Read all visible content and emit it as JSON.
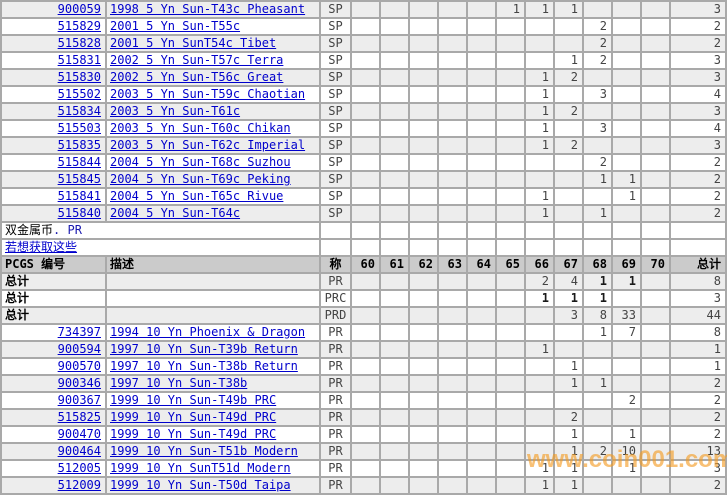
{
  "watermark": "www.coin001.com",
  "colors": {
    "link_blue": "#0000cc",
    "grid_gray": "#a9a9a9",
    "row_gray": "#ededed",
    "header_gray": "#cbcbcb",
    "watermark_orange": "#f49b21"
  },
  "table": {
    "headers": {
      "pcgs": "PCGS 编号",
      "desc": "描述",
      "type": "称",
      "grades": [
        "60",
        "61",
        "62",
        "63",
        "64",
        "65",
        "66",
        "67",
        "68",
        "69",
        "70"
      ],
      "total": "总计"
    },
    "section_break": {
      "title_black": "双金属币",
      "title_blue": ". PR",
      "link": "若想获取这些"
    },
    "totals_label": "总计",
    "top_rows": [
      {
        "pcgs": "900059",
        "desc": "1998 5 Yn Sun-T43c Pheasant",
        "type": "SP",
        "grades": {
          "65": "1",
          "66": "1",
          "67": "1"
        },
        "total": "3"
      },
      {
        "pcgs": "515829",
        "desc": "2001 5 Yn Sun-T55c",
        "type": "SP",
        "grades": {
          "68": "2"
        },
        "total": "2"
      },
      {
        "pcgs": "515828",
        "desc": "2001 5 Yn SunT54c Tibet",
        "type": "SP",
        "grades": {
          "68": "2"
        },
        "total": "2"
      },
      {
        "pcgs": "515831",
        "desc": "2002 5 Yn Sun-T57c Terra",
        "type": "SP",
        "grades": {
          "67": "1",
          "68": "2"
        },
        "total": "3"
      },
      {
        "pcgs": "515830",
        "desc": "2002 5 Yn Sun-T56c Great",
        "type": "SP",
        "grades": {
          "66": "1",
          "67": "2"
        },
        "total": "3"
      },
      {
        "pcgs": "515502",
        "desc": "2003 5 Yn Sun-T59c Chaotian",
        "type": "SP",
        "grades": {
          "66": "1",
          "68": "3"
        },
        "total": "4"
      },
      {
        "pcgs": "515834",
        "desc": "2003 5 Yn Sun-T61c",
        "type": "SP",
        "grades": {
          "66": "1",
          "67": "2"
        },
        "total": "3"
      },
      {
        "pcgs": "515503",
        "desc": "2003 5 Yn Sun-T60c Chikan",
        "type": "SP",
        "grades": {
          "66": "1",
          "68": "3"
        },
        "total": "4"
      },
      {
        "pcgs": "515835",
        "desc": "2003 5 Yn Sun-T62c Imperial",
        "type": "SP",
        "grades": {
          "66": "1",
          "67": "2"
        },
        "total": "3"
      },
      {
        "pcgs": "515844",
        "desc": "2004 5 Yn Sun-T68c Suzhou",
        "type": "SP",
        "grades": {
          "68": "2"
        },
        "total": "2"
      },
      {
        "pcgs": "515845",
        "desc": "2004 5 Yn Sun-T69c Peking",
        "type": "SP",
        "grades": {
          "68": "1",
          "69": "1"
        },
        "total": "2"
      },
      {
        "pcgs": "515841",
        "desc": "2004 5 Yn Sun-T65c Rivue",
        "type": "SP",
        "grades": {
          "66": "1",
          "69": "1"
        },
        "total": "2"
      },
      {
        "pcgs": "515840",
        "desc": "2004 5 Yn Sun-T64c",
        "type": "SP",
        "grades": {
          "66": "1",
          "68": "1"
        },
        "total": "2"
      }
    ],
    "total_rows": [
      {
        "type": "PR",
        "grades": {
          "66": "2",
          "67": "4",
          "68": "1",
          "69": "1"
        },
        "bold": [
          "68",
          "69"
        ],
        "total": "8"
      },
      {
        "type": "PRC",
        "grades": {
          "66": "1",
          "67": "1",
          "68": "1"
        },
        "bold": [
          "66",
          "67",
          "68"
        ],
        "total": "3"
      },
      {
        "type": "PRD",
        "grades": {
          "67": "3",
          "68": "8",
          "69": "33"
        },
        "bold": [],
        "total": "44"
      }
    ],
    "bottom_rows": [
      {
        "pcgs": "734397",
        "desc": "1994 10 Yn Phoenix & Dragon",
        "type": "PR",
        "grades": {
          "68": "1",
          "69": "7"
        },
        "total": "8"
      },
      {
        "pcgs": "900594",
        "desc": "1997 10 Yn Sun-T39b Return",
        "type": "PR",
        "grades": {
          "66": "1"
        },
        "total": "1"
      },
      {
        "pcgs": "900570",
        "desc": "1997 10 Yn Sun-T38b Return",
        "type": "PR",
        "grades": {
          "67": "1"
        },
        "total": "1"
      },
      {
        "pcgs": "900346",
        "desc": "1997 10 Yn Sun-T38b",
        "type": "PR",
        "grades": {
          "67": "1",
          "68": "1"
        },
        "total": "2"
      },
      {
        "pcgs": "900367",
        "desc": "1999 10 Yn Sun-T49b PRC",
        "type": "PR",
        "grades": {
          "69": "2"
        },
        "total": "2"
      },
      {
        "pcgs": "515825",
        "desc": "1999 10 Yn Sun-T49d PRC",
        "type": "PR",
        "grades": {
          "67": "2"
        },
        "total": "2"
      },
      {
        "pcgs": "900470",
        "desc": "1999 10 Yn Sun-T49d PRC",
        "type": "PR",
        "grades": {
          "67": "1",
          "69": "1"
        },
        "total": "2"
      },
      {
        "pcgs": "900464",
        "desc": "1999 10 Yn Sun-T51b Modern",
        "type": "PR",
        "grades": {
          "67": "1",
          "68": "2",
          "69": "10"
        },
        "total": "13"
      },
      {
        "pcgs": "512005",
        "desc": "1999 10 Yn SunT51d Modern",
        "type": "PR",
        "grades": {
          "66": "1",
          "67": "1",
          "69": "1"
        },
        "total": "3"
      },
      {
        "pcgs": "512009",
        "desc": "1999 10 Yn Sun-T50d Taipa",
        "type": "PR",
        "grades": {
          "66": "1",
          "67": "1"
        },
        "total": "2"
      }
    ]
  }
}
